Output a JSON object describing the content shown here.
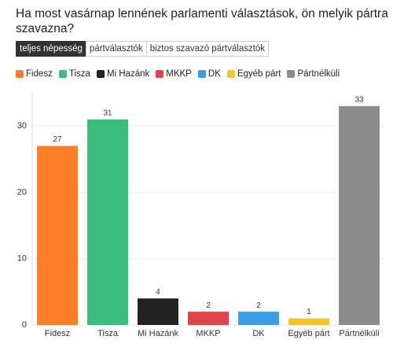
{
  "chart_data": {
    "type": "bar",
    "title": "Ha most vasárnap lennének parlamenti választások, ön melyik pártra szavazna?",
    "tabs": [
      "teljes népesség",
      "pártválasztók",
      "biztos szavazó pártválasztók"
    ],
    "active_tab": 0,
    "categories": [
      "Fidesz",
      "Tisza",
      "Mi Hazánk",
      "MKKP",
      "DK",
      "Egyéb párt",
      "Pártnélküli"
    ],
    "values": [
      27,
      31,
      4,
      2,
      2,
      1,
      33
    ],
    "colors": [
      "#fd7f2c",
      "#3dbd7d",
      "#222222",
      "#e0434b",
      "#3c9ee5",
      "#f4c430",
      "#8c8c8c"
    ],
    "ylim": [
      0,
      35
    ],
    "yticks": [
      0,
      10,
      20,
      30
    ],
    "grid": true
  }
}
